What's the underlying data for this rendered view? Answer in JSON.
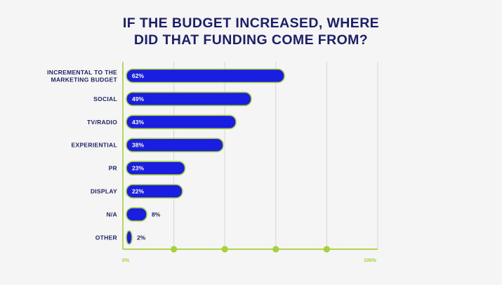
{
  "chart_data": {
    "type": "bar",
    "orientation": "horizontal",
    "title_lines": [
      "IF THE BUDGET INCREASED, WHERE",
      "DID THAT FUNDING COME FROM?"
    ],
    "categories": [
      [
        "INCREMENTAL TO THE",
        "MARKETING BUDGET"
      ],
      [
        "SOCIAL"
      ],
      [
        "TV/RADIO"
      ],
      [
        "EXPERIENTIAL"
      ],
      [
        "PR"
      ],
      [
        "DISPLAY"
      ],
      [
        "N/A"
      ],
      [
        "OTHER"
      ]
    ],
    "values": [
      62,
      49,
      43,
      38,
      23,
      22,
      8,
      2
    ],
    "value_labels": [
      "62%",
      "49%",
      "43%",
      "38%",
      "23%",
      "22%",
      "8%",
      "2%"
    ],
    "xlim": [
      0,
      100
    ],
    "x_tick_labels": [
      "0%",
      "100%"
    ],
    "gridlines": [
      0,
      20,
      40,
      60,
      80,
      100
    ],
    "grid": true,
    "colors": {
      "bar_fill": "#1a1ee0",
      "bar_outline": "#a6d13b",
      "axis": "#a6d13b",
      "title": "#1b1f6b",
      "grid": "#d6d6d6"
    }
  }
}
